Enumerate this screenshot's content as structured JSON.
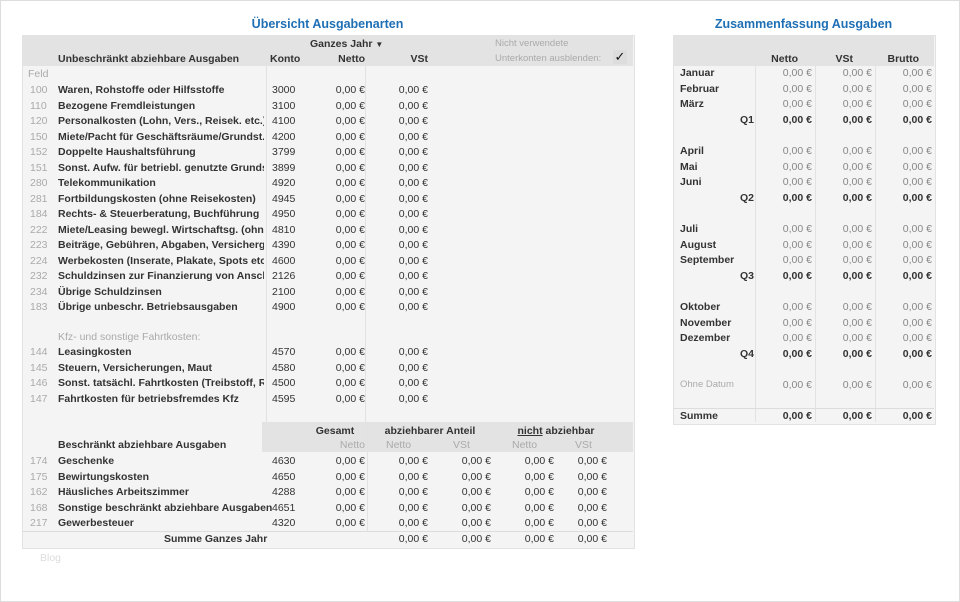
{
  "left": {
    "title": "Übersicht Ausgabenarten",
    "period_select": "Ganzes Jahr",
    "section1_title": "Unbeschränkt abziehbare Ausgaben",
    "col_konto": "Konto",
    "col_netto": "Netto",
    "col_vst": "VSt",
    "hide_label_1": "Nicht verwendete",
    "hide_label_2": "Unterkonten ausblenden:",
    "hide_checked": true,
    "feld_label": "Feld",
    "rows1": [
      [
        "100",
        "Waren, Rohstoffe oder Hilfsstoffe",
        "3000",
        "0,00 €",
        "0,00 €"
      ],
      [
        "110",
        "Bezogene Fremdleistungen",
        "3100",
        "0,00 €",
        "0,00 €"
      ],
      [
        "120",
        "Personalkosten (Lohn, Vers., Reisek. etc.)",
        "4100",
        "0,00 €",
        "0,00 €"
      ],
      [
        "150",
        "Miete/Pacht für Geschäftsräume/Grundst.",
        "4200",
        "0,00 €",
        "0,00 €"
      ],
      [
        "152",
        "Doppelte Haushaltsführung",
        "3799",
        "0,00 €",
        "0,00 €"
      ],
      [
        "151",
        "Sonst. Aufw. für betriebl. genutzte Grundst.",
        "3899",
        "0,00 €",
        "0,00 €"
      ],
      [
        "280",
        "Telekommunikation",
        "4920",
        "0,00 €",
        "0,00 €"
      ],
      [
        "281",
        "Fortbildungskosten (ohne Reisekosten)",
        "4945",
        "0,00 €",
        "0,00 €"
      ],
      [
        "184",
        "Rechts- & Steuerberatung, Buchführung",
        "4950",
        "0,00 €",
        "0,00 €"
      ],
      [
        "222",
        "Miete/Leasing bewegl. Wirtschaftsg. (ohne K",
        "4810",
        "0,00 €",
        "0,00 €"
      ],
      [
        "223",
        "Beiträge, Gebühren, Abgaben, Versicherg. (o",
        "4390",
        "0,00 €",
        "0,00 €"
      ],
      [
        "224",
        "Werbekosten (Inserate, Plakate, Spots etc.)",
        "4600",
        "0,00 €",
        "0,00 €"
      ],
      [
        "232",
        "Schuldzinsen zur Finanzierung von Anschaf",
        "2126",
        "0,00 €",
        "0,00 €"
      ],
      [
        "234",
        "Übrige Schuldzinsen",
        "2100",
        "0,00 €",
        "0,00 €"
      ],
      [
        "183",
        "Übrige unbeschr. Betriebsausgaben",
        "4900",
        "0,00 €",
        "0,00 €"
      ]
    ],
    "kfz_heading": "Kfz- und sonstige Fahrtkosten:",
    "rows_kfz": [
      [
        "144",
        "Leasingkosten",
        "4570",
        "0,00 €",
        "0,00 €"
      ],
      [
        "145",
        "Steuern, Versicherungen, Maut",
        "4580",
        "0,00 €",
        "0,00 €"
      ],
      [
        "146",
        "Sonst. tatsächl. Fahrtkosten (Treibstoff, Rep",
        "4500",
        "0,00 €",
        "0,00 €"
      ],
      [
        "147",
        "Fahrtkosten für betriebsfremdes Kfz",
        "4595",
        "0,00 €",
        "0,00 €"
      ]
    ],
    "section2_title": "Beschränkt abziehbare Ausgaben",
    "h2_gesamt": "Gesamt",
    "h2_abz": "abziehbarer Anteil",
    "h2_nicht": "nicht",
    "h2_nicht_rest": " abziehbar",
    "h2_netto": "Netto",
    "h2_vst": "VSt",
    "rows2": [
      [
        "174",
        "Geschenke",
        "4630",
        "0,00 €",
        "0,00 €",
        "0,00 €",
        "0,00 €",
        "0,00 €"
      ],
      [
        "175",
        "Bewirtungskosten",
        "4650",
        "0,00 €",
        "0,00 €",
        "0,00 €",
        "0,00 €",
        "0,00 €"
      ],
      [
        "162",
        "Häusliches Arbeitszimmer",
        "4288",
        "0,00 €",
        "0,00 €",
        "0,00 €",
        "0,00 €",
        "0,00 €"
      ],
      [
        "168",
        "Sonstige beschränkt abziehbare Ausgaben",
        "4651",
        "0,00 €",
        "0,00 €",
        "0,00 €",
        "0,00 €",
        "0,00 €"
      ],
      [
        "217",
        "Gewerbesteuer",
        "4320",
        "0,00 €",
        "0,00 €",
        "0,00 €",
        "0,00 €",
        "0,00 €"
      ]
    ],
    "sum_label": "Summe Ganzes Jahr",
    "sum_values": [
      "0,00 €",
      "0,00 €",
      "0,00 €",
      "0,00 €"
    ],
    "footer": "Blog"
  },
  "right": {
    "title": "Zusammenfassung Ausgaben",
    "col_netto": "Netto",
    "col_vst": "VSt",
    "col_brutto": "Brutto",
    "rows": [
      {
        "label": "Januar",
        "type": "m",
        "v": [
          "0,00 €",
          "0,00 €",
          "0,00 €"
        ]
      },
      {
        "label": "Februar",
        "type": "m",
        "v": [
          "0,00 €",
          "0,00 €",
          "0,00 €"
        ]
      },
      {
        "label": "März",
        "type": "m",
        "v": [
          "0,00 €",
          "0,00 €",
          "0,00 €"
        ]
      },
      {
        "label": "Q1",
        "type": "q",
        "v": [
          "0,00 €",
          "0,00 €",
          "0,00 €"
        ]
      },
      {
        "label": "",
        "type": "blank",
        "v": []
      },
      {
        "label": "April",
        "type": "m",
        "v": [
          "0,00 €",
          "0,00 €",
          "0,00 €"
        ]
      },
      {
        "label": "Mai",
        "type": "m",
        "v": [
          "0,00 €",
          "0,00 €",
          "0,00 €"
        ]
      },
      {
        "label": "Juni",
        "type": "m",
        "v": [
          "0,00 €",
          "0,00 €",
          "0,00 €"
        ]
      },
      {
        "label": "Q2",
        "type": "q",
        "v": [
          "0,00 €",
          "0,00 €",
          "0,00 €"
        ]
      },
      {
        "label": "",
        "type": "blank",
        "v": []
      },
      {
        "label": "Juli",
        "type": "m",
        "v": [
          "0,00 €",
          "0,00 €",
          "0,00 €"
        ]
      },
      {
        "label": "August",
        "type": "m",
        "v": [
          "0,00 €",
          "0,00 €",
          "0,00 €"
        ]
      },
      {
        "label": "September",
        "type": "m",
        "v": [
          "0,00 €",
          "0,00 €",
          "0,00 €"
        ]
      },
      {
        "label": "Q3",
        "type": "q",
        "v": [
          "0,00 €",
          "0,00 €",
          "0,00 €"
        ]
      },
      {
        "label": "",
        "type": "blank",
        "v": []
      },
      {
        "label": "Oktober",
        "type": "m",
        "v": [
          "0,00 €",
          "0,00 €",
          "0,00 €"
        ]
      },
      {
        "label": "November",
        "type": "m",
        "v": [
          "0,00 €",
          "0,00 €",
          "0,00 €"
        ]
      },
      {
        "label": "Dezember",
        "type": "m",
        "v": [
          "0,00 €",
          "0,00 €",
          "0,00 €"
        ]
      },
      {
        "label": "Q4",
        "type": "q",
        "v": [
          "0,00 €",
          "0,00 €",
          "0,00 €"
        ]
      },
      {
        "label": "",
        "type": "blank",
        "v": []
      },
      {
        "label": "Ohne Datum",
        "type": "o",
        "v": [
          "0,00 €",
          "0,00 €",
          "0,00 €"
        ]
      },
      {
        "label": "",
        "type": "blank",
        "v": []
      },
      {
        "label": "Summe",
        "type": "s",
        "v": [
          "0,00 €",
          "0,00 €",
          "0,00 €"
        ]
      }
    ]
  }
}
